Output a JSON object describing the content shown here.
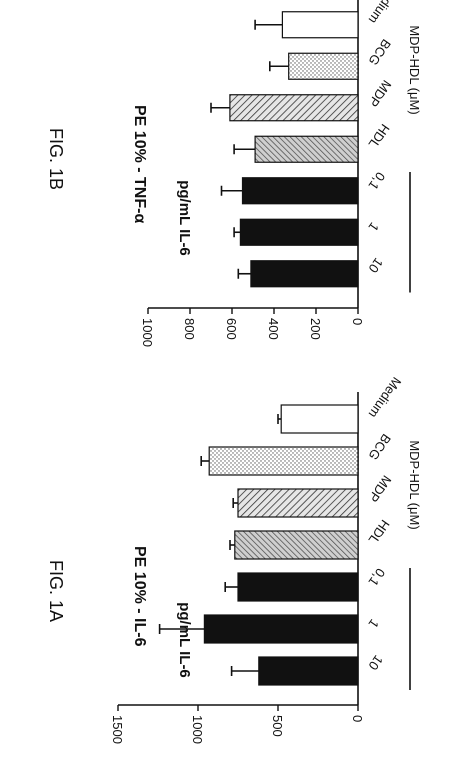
{
  "figure_labels": [
    "FIG. 1A",
    "FIG. 1B"
  ],
  "pattern_legend": [
    "white",
    "light-dots",
    "hatched",
    "hatched-dense",
    "black",
    "black",
    "black"
  ],
  "colors": {
    "ink": "#111111",
    "background": "#ffffff"
  },
  "chart_data": [
    {
      "type": "bar",
      "title": "PE 10% - IL-6",
      "ylabel": "pg/mL IL-6",
      "ylim": [
        0,
        1500
      ],
      "yticks": [
        "0",
        "500",
        "1000",
        "1500"
      ],
      "categories": [
        "Medium",
        "BCG",
        "MDP",
        "HDL",
        "0,1",
        "1",
        "10"
      ],
      "values": [
        480,
        930,
        750,
        770,
        750,
        960,
        620
      ],
      "errors": [
        20,
        50,
        30,
        30,
        80,
        280,
        170
      ],
      "group_label": "MDP-HDL (μM)",
      "group_indices": [
        4,
        5,
        6
      ],
      "grid": false,
      "legend": "none"
    },
    {
      "type": "bar",
      "title": "PE 10% - TNF-α",
      "ylabel": "pg/mL IL-6",
      "ylim": [
        0,
        1000
      ],
      "yticks": [
        "0",
        "200",
        "400",
        "600",
        "800",
        "1000"
      ],
      "categories": [
        "Medium",
        "BCG",
        "MDP",
        "HDL",
        "0,1",
        "1",
        "10"
      ],
      "values": [
        360,
        330,
        610,
        490,
        550,
        560,
        510
      ],
      "errors": [
        130,
        90,
        90,
        100,
        100,
        30,
        60
      ],
      "group_label": "MDP-HDL (μM)",
      "group_indices": [
        4,
        5,
        6
      ],
      "grid": false,
      "legend": "none"
    }
  ]
}
